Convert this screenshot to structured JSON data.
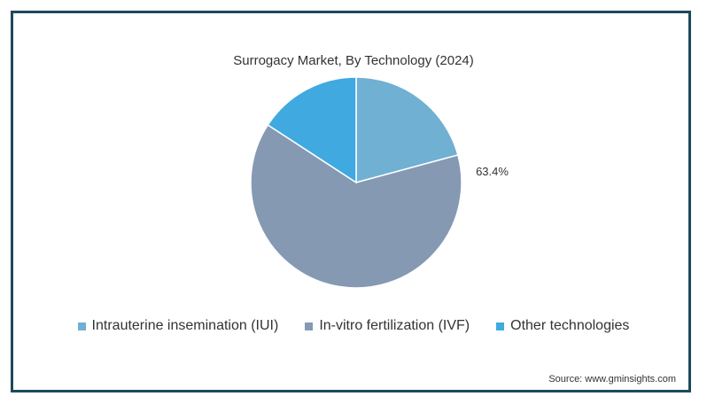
{
  "chart_data": {
    "type": "pie",
    "title": "Surrogacy Market, By Technology (2024)",
    "slices": [
      {
        "label": "Intrauterine insemination (IUI)",
        "value": 20.8,
        "color": "#6fb0d3"
      },
      {
        "label": "In-vitro fertilization (IVF)",
        "value": 63.4,
        "color": "#8599b3",
        "data_label": "63.4%"
      },
      {
        "label": "Other technologies",
        "value": 15.8,
        "color": "#3fa9e0"
      }
    ],
    "legend_placement": "bottom"
  },
  "source": "Source: www.gminsights.com"
}
